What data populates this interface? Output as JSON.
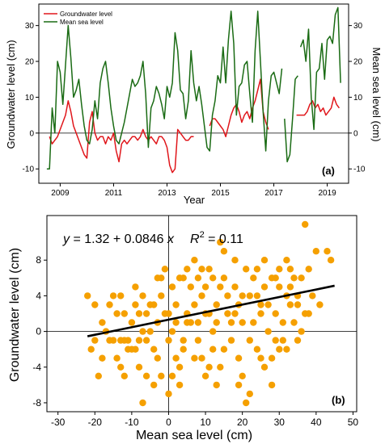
{
  "colors": {
    "groundwater": "#e0161b",
    "sea": "#1a6b14",
    "scatter": "#f5a000",
    "fit": "#000000"
  },
  "chart_data": [
    {
      "type": "line",
      "panel_label": "(a)",
      "xlabel": "Year",
      "ylabel": "Groundwater level (cm)",
      "ylabel_right": "Mean sea level (cm)",
      "xlim": [
        2008.2,
        2019.8
      ],
      "ylim": [
        -14,
        36
      ],
      "x_ticks": [
        2009,
        2011,
        2013,
        2015,
        2017,
        2019
      ],
      "x_tick_labels": [
        "2009",
        "2011",
        "2013",
        "2015",
        "2017",
        "2019"
      ],
      "y_ticks": [
        -10,
        0,
        10,
        20,
        30
      ],
      "y_tick_labels": [
        "-10",
        "0",
        "10",
        "20",
        "30"
      ],
      "y_ticks_right": [
        -10,
        0,
        10,
        20,
        30
      ],
      "y_tick_labels_right": [
        "-10",
        "0",
        "10",
        "20",
        "30"
      ],
      "hline": 0,
      "legend_position": "top-left",
      "series": [
        {
          "name": "Groundwater level",
          "color": "#e0161b",
          "segments": [
            {
              "x": [
                2008.6,
                2008.7,
                2008.8,
                2008.9,
                2009.0,
                2009.1,
                2009.2,
                2009.3,
                2009.4,
                2009.5,
                2009.6,
                2009.7,
                2009.8,
                2009.9,
                2010.0,
                2010.1,
                2010.2,
                2010.3,
                2010.4,
                2010.5,
                2010.6,
                2010.7,
                2010.8,
                2010.9,
                2011.0,
                2011.1,
                2011.2,
                2011.3,
                2011.4,
                2011.5,
                2011.6,
                2011.7,
                2011.8,
                2011.9,
                2012.0,
                2012.1,
                2012.2,
                2012.3,
                2012.4,
                2012.5,
                2012.6,
                2012.7,
                2012.8,
                2012.9,
                2013.0,
                2013.1,
                2013.2,
                2013.3,
                2013.4,
                2013.5,
                2013.6,
                2013.7,
                2013.8,
                2013.9,
                2014.0
              ],
              "y": [
                -1,
                -3,
                -2,
                -1,
                1,
                3,
                5,
                9,
                6,
                2,
                0,
                -2,
                -4,
                -6,
                -7,
                3,
                6,
                0,
                -2,
                -1,
                -1,
                -3,
                -1,
                -2,
                0,
                -5,
                -8,
                -3,
                -2,
                -3,
                -2,
                -1,
                -1,
                -2,
                -1,
                1,
                -1,
                -2,
                -1,
                -2,
                -3,
                -1,
                -1,
                -2,
                -4,
                -9,
                -11,
                -10,
                1,
                0,
                -1,
                -2,
                -2,
                -1,
                -1
              ]
            },
            {
              "x": [
                2014.6,
                2014.7,
                2014.8,
                2014.9,
                2015.0,
                2015.1,
                2015.2,
                2015.3,
                2015.4,
                2015.5,
                2015.6,
                2015.7,
                2015.8,
                2015.9,
                2016.0,
                2016.1,
                2016.2,
                2016.3,
                2016.4,
                2016.5,
                2016.6,
                2016.7,
                2016.8
              ],
              "y": [
                2,
                4,
                4,
                3,
                2,
                1,
                -1,
                2,
                5,
                7,
                8,
                6,
                3,
                5,
                6,
                4,
                7,
                9,
                12,
                15,
                6,
                3,
                1
              ]
            },
            {
              "x": [
                2017.85,
                2017.95,
                2018.05,
                2018.15,
                2018.25,
                2018.35,
                2018.45,
                2018.55,
                2018.65,
                2018.75,
                2018.85,
                2018.95,
                2019.05,
                2019.15,
                2019.25,
                2019.35,
                2019.45
              ],
              "y": [
                5,
                5,
                5,
                5,
                6,
                8,
                9,
                7,
                8,
                6,
                7,
                5,
                6,
                7,
                10,
                8,
                7
              ]
            }
          ]
        },
        {
          "name": "Mean sea level",
          "color": "#1a6b14",
          "segments": [
            {
              "x": [
                2008.5,
                2008.6,
                2008.7,
                2008.8,
                2008.9,
                2009.0,
                2009.1,
                2009.2,
                2009.3,
                2009.4,
                2009.5,
                2009.6,
                2009.7,
                2009.8,
                2009.9,
                2010.0,
                2010.1,
                2010.2,
                2010.3,
                2010.4,
                2010.5,
                2010.6,
                2010.7,
                2010.8,
                2010.9,
                2011.0,
                2011.1,
                2011.2,
                2011.3,
                2011.4,
                2011.5,
                2011.6,
                2011.7,
                2011.8,
                2011.9,
                2012.0,
                2012.1,
                2012.2,
                2012.3,
                2012.4,
                2012.5,
                2012.6,
                2012.7,
                2012.8,
                2012.9,
                2013.0,
                2013.1,
                2013.2,
                2013.3,
                2013.4,
                2013.5,
                2013.6,
                2013.7,
                2013.8,
                2013.9,
                2014.0,
                2014.1,
                2014.2,
                2014.3,
                2014.4,
                2014.5,
                2014.6,
                2014.7,
                2014.8,
                2014.9,
                2015.0,
                2015.1,
                2015.2,
                2015.3,
                2015.4,
                2015.5,
                2015.6,
                2015.7,
                2015.8,
                2015.9,
                2016.0,
                2016.1,
                2016.2,
                2016.3,
                2016.4,
                2016.5,
                2016.6,
                2016.7,
                2016.8,
                2016.9,
                2017.0,
                2017.1,
                2017.2,
                2017.3
              ],
              "y": [
                -10,
                -10,
                7,
                0,
                20,
                17,
                8,
                19,
                30,
                21,
                10,
                12,
                15,
                8,
                2,
                -2,
                -3,
                1,
                9,
                4,
                14,
                18,
                20,
                14,
                7,
                2,
                -2,
                -3,
                0,
                3,
                7,
                11,
                15,
                13,
                14,
                16,
                20,
                11,
                -4,
                7,
                9,
                13,
                11,
                8,
                4,
                13,
                10,
                14,
                28,
                23,
                12,
                11,
                4,
                9,
                23,
                14,
                9,
                13,
                8,
                2,
                -4,
                -5,
                5,
                9,
                16,
                14,
                24,
                14,
                26,
                34,
                25,
                5,
                13,
                14,
                19,
                20,
                11,
                3,
                23,
                34,
                20,
                6,
                -5,
                9,
                16,
                17,
                14,
                11,
                18
              ]
            },
            {
              "x": [
                2017.4,
                2017.5,
                2017.6,
                2017.7,
                2017.8,
                2017.9
              ],
              "y": [
                4,
                -8,
                -6,
                4,
                15,
                16
              ]
            },
            {
              "x": [
                2018.0,
                2018.1,
                2018.2,
                2018.3,
                2018.4,
                2018.5,
                2018.6,
                2018.7,
                2018.8,
                2018.9,
                2019.0,
                2019.1,
                2019.2,
                2019.3,
                2019.4,
                2019.5
              ],
              "y": [
                24,
                26,
                20,
                29,
                10,
                1,
                17,
                18,
                25,
                15,
                26,
                27,
                25,
                33,
                35,
                14
              ]
            }
          ]
        }
      ]
    },
    {
      "type": "scatter",
      "panel_label": "(b)",
      "xlabel": "Mean sea level (cm)",
      "ylabel": "Groundwater level (cm)",
      "xlim": [
        -33,
        51
      ],
      "ylim": [
        -9,
        13
      ],
      "x_ticks": [
        -30,
        -20,
        -10,
        0,
        10,
        20,
        30,
        40,
        50
      ],
      "x_tick_labels": [
        "-30",
        "-20",
        "-10",
        "0",
        "10",
        "20",
        "30",
        "40",
        "50"
      ],
      "y_ticks": [
        -8,
        -4,
        0,
        4,
        8
      ],
      "y_tick_labels": [
        "-8",
        "-4",
        "0",
        "4",
        "8"
      ],
      "hline": 0,
      "vline": 0,
      "equation": {
        "y": "y",
        "eq": " = 1.32 + 0.0846 ",
        "x": "x",
        "r": "R",
        "sup": "2",
        "val": " = 0.11"
      },
      "fit": {
        "intercept": 1.32,
        "slope": 0.0846,
        "x_range": [
          -22,
          45
        ]
      },
      "points": [
        [
          -22,
          4
        ],
        [
          -20,
          3
        ],
        [
          -18,
          -3
        ],
        [
          -15,
          -1
        ],
        [
          -14,
          2
        ],
        [
          -13,
          4
        ],
        [
          -12,
          -1
        ],
        [
          -11,
          -2
        ],
        [
          -10,
          1
        ],
        [
          -9,
          3
        ],
        [
          -8,
          -4
        ],
        [
          -7,
          0
        ],
        [
          -7,
          -8
        ],
        [
          -6,
          -1
        ],
        [
          -5,
          3
        ],
        [
          -4,
          -6
        ],
        [
          -3,
          1
        ],
        [
          -2,
          4
        ],
        [
          -1,
          2
        ],
        [
          0,
          -1
        ],
        [
          1,
          0
        ],
        [
          2,
          3
        ],
        [
          3,
          6
        ],
        [
          4,
          -2
        ],
        [
          5,
          2
        ],
        [
          6,
          5
        ],
        [
          7,
          -3
        ],
        [
          8,
          1
        ],
        [
          9,
          4
        ],
        [
          10,
          -5
        ],
        [
          11,
          7
        ],
        [
          12,
          0
        ],
        [
          13,
          3
        ],
        [
          14,
          -4
        ],
        [
          15,
          9
        ],
        [
          16,
          2
        ],
        [
          17,
          -1
        ],
        [
          18,
          5
        ],
        [
          19,
          -6
        ],
        [
          20,
          1
        ],
        [
          21,
          -8
        ],
        [
          22,
          4
        ],
        [
          23,
          6
        ],
        [
          24,
          -2
        ],
        [
          25,
          3
        ],
        [
          26,
          8
        ],
        [
          27,
          0
        ],
        [
          28,
          -3
        ],
        [
          29,
          2
        ],
        [
          30,
          5
        ],
        [
          31,
          -1
        ],
        [
          32,
          4
        ],
        [
          33,
          7
        ],
        [
          34,
          1
        ],
        [
          35,
          3
        ],
        [
          36,
          6
        ],
        [
          37,
          12
        ],
        [
          38,
          2
        ],
        [
          40,
          9
        ],
        [
          43,
          9
        ],
        [
          -19,
          -5
        ],
        [
          -16,
          3
        ],
        [
          -13,
          -4
        ],
        [
          -9,
          5
        ],
        [
          -6,
          -5
        ],
        [
          -4,
          -2
        ],
        [
          -2,
          6
        ],
        [
          1,
          -5
        ],
        [
          3,
          -4
        ],
        [
          5,
          7
        ],
        [
          8,
          -1
        ],
        [
          10,
          5
        ],
        [
          12,
          6
        ],
        [
          15,
          -2
        ],
        [
          18,
          8
        ],
        [
          20,
          -5
        ],
        [
          23,
          1
        ],
        [
          26,
          -4
        ],
        [
          29,
          6
        ],
        [
          32,
          -2
        ],
        [
          -21,
          -2
        ],
        [
          -17,
          0
        ],
        [
          -14,
          -3
        ],
        [
          -10,
          -2
        ],
        [
          -7,
          4
        ],
        [
          -3,
          -3
        ],
        [
          -1,
          7
        ],
        [
          2,
          1
        ],
        [
          4,
          6
        ],
        [
          7,
          3
        ],
        [
          9,
          -3
        ],
        [
          11,
          2
        ],
        [
          13,
          -6
        ],
        [
          16,
          4
        ],
        [
          19,
          3
        ],
        [
          22,
          -1
        ],
        [
          24,
          7
        ],
        [
          27,
          3
        ],
        [
          30,
          -2
        ],
        [
          33,
          3
        ],
        [
          -15,
          4
        ],
        [
          -12,
          2
        ],
        [
          -8,
          -1
        ],
        [
          -5,
          0
        ],
        [
          0,
          2
        ],
        [
          3,
          -6
        ],
        [
          6,
          1
        ],
        [
          9,
          7
        ],
        [
          12,
          -2
        ],
        [
          14,
          5
        ],
        [
          17,
          1
        ],
        [
          21,
          7
        ],
        [
          25,
          -3
        ],
        [
          28,
          6
        ],
        [
          31,
          1
        ],
        [
          34,
          6
        ],
        [
          36,
          0
        ],
        [
          39,
          4
        ],
        [
          41,
          3
        ],
        [
          44,
          8
        ],
        [
          -11,
          -1
        ],
        [
          -6,
          2
        ],
        [
          -2,
          -5
        ],
        [
          1,
          5
        ],
        [
          4,
          -1
        ],
        [
          8,
          6
        ],
        [
          11,
          -4
        ],
        [
          14,
          10
        ],
        [
          18,
          2
        ],
        [
          22,
          -7
        ],
        [
          26,
          5
        ],
        [
          29,
          -1
        ],
        [
          32,
          8
        ],
        [
          35,
          -1
        ],
        [
          38,
          7
        ],
        [
          -18,
          1
        ],
        [
          -13,
          -1
        ],
        [
          -9,
          -2
        ],
        [
          -4,
          3
        ],
        [
          0,
          -7
        ],
        [
          5,
          1
        ],
        [
          10,
          2
        ],
        [
          15,
          6
        ],
        [
          20,
          4
        ],
        [
          25,
          2
        ],
        [
          30,
          7
        ],
        [
          35,
          4
        ],
        [
          -20,
          -1
        ],
        [
          -16,
          -1
        ],
        [
          -12,
          -5
        ],
        [
          -8,
          2
        ],
        [
          -3,
          6
        ],
        [
          2,
          -3
        ],
        [
          7,
          8
        ],
        [
          13,
          1
        ],
        [
          19,
          -3
        ],
        [
          24,
          4
        ],
        [
          28,
          -6
        ],
        [
          33,
          5
        ],
        [
          37,
          2
        ]
      ]
    }
  ]
}
